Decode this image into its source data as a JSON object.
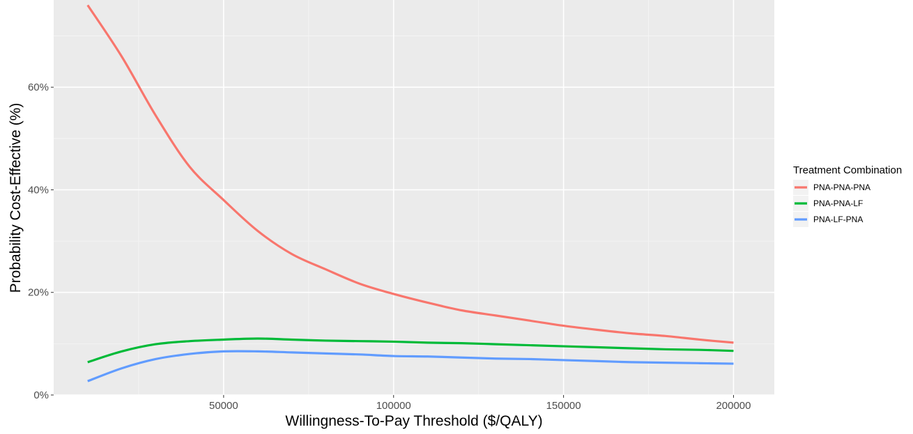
{
  "chart_data": {
    "type": "line",
    "title": "",
    "xlabel": "Willingness-To-Pay Threshold ($/QALY)",
    "ylabel": "Probability Cost-Effective (%)",
    "xlim": [
      0,
      212000
    ],
    "ylim": [
      0,
      77
    ],
    "x_ticks": [
      50000,
      100000,
      150000,
      200000
    ],
    "x_tick_labels": [
      "50000",
      "100000",
      "150000",
      "200000"
    ],
    "y_ticks": [
      0,
      20,
      40,
      60
    ],
    "y_tick_labels": [
      "0%",
      "20%",
      "40%",
      "60%"
    ],
    "grid": true,
    "background": "#ebebeb",
    "legend": {
      "title": "Treatment Combination",
      "position": "right"
    },
    "x": [
      10000,
      20000,
      30000,
      40000,
      50000,
      60000,
      70000,
      80000,
      90000,
      100000,
      110000,
      120000,
      130000,
      140000,
      150000,
      160000,
      170000,
      180000,
      190000,
      200000
    ],
    "series": [
      {
        "name": "PNA-PNA-PNA",
        "color": "#f8766d",
        "values": [
          76,
          66,
          54.5,
          44.5,
          38,
          32,
          27.5,
          24.5,
          21.7,
          19.7,
          18,
          16.5,
          15.5,
          14.5,
          13.5,
          12.7,
          12,
          11.5,
          10.8,
          10.2
        ]
      },
      {
        "name": "PNA-PNA-LF",
        "color": "#00ba38",
        "values": [
          6.4,
          8.5,
          9.9,
          10.5,
          10.8,
          11,
          10.8,
          10.6,
          10.5,
          10.4,
          10.2,
          10.1,
          9.9,
          9.7,
          9.5,
          9.3,
          9.1,
          8.9,
          8.8,
          8.6
        ]
      },
      {
        "name": "PNA-LF-PNA",
        "color": "#619cff",
        "values": [
          2.7,
          5.2,
          7,
          8,
          8.5,
          8.5,
          8.3,
          8.1,
          7.9,
          7.6,
          7.5,
          7.3,
          7.1,
          7,
          6.8,
          6.6,
          6.4,
          6.3,
          6.2,
          6.1
        ]
      }
    ]
  }
}
